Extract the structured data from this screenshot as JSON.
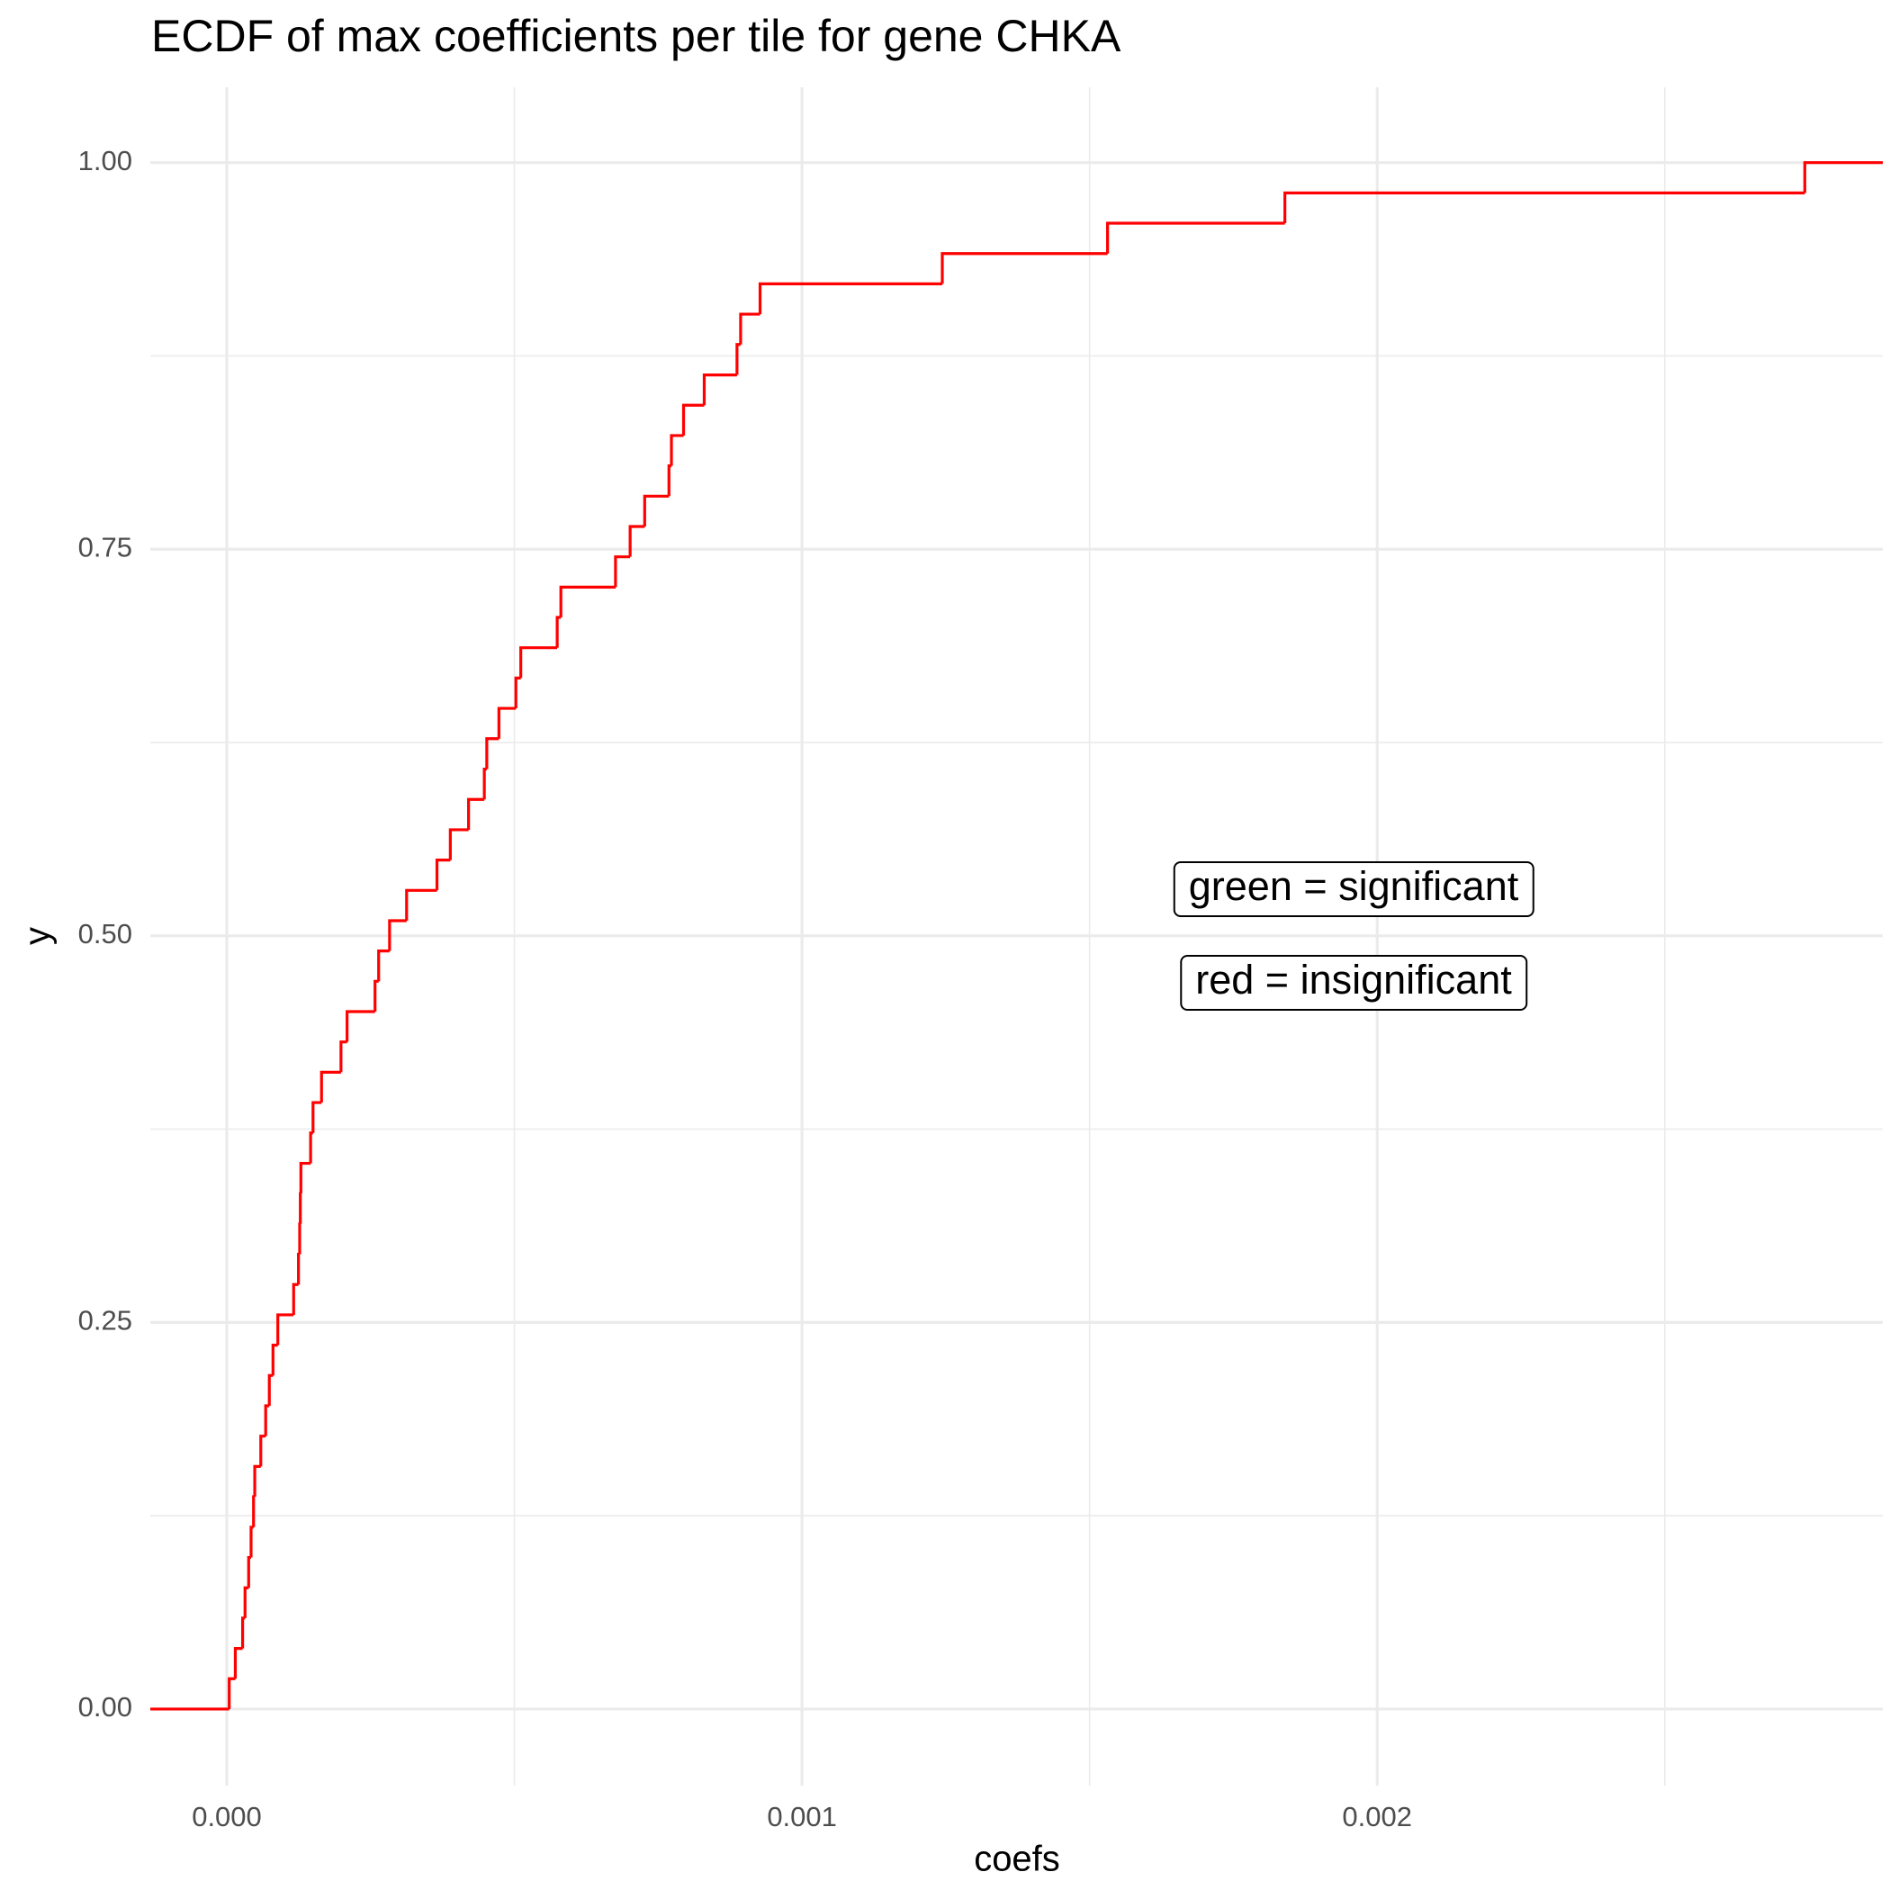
{
  "chart_data": {
    "type": "ecdf",
    "title": "ECDF of max coefficients per tile for gene CHKA",
    "x_label": "coefs",
    "y_label": "y",
    "color": "#ff0000",
    "x": [
      4.2e-06,
      1.48e-05,
      2.75e-05,
      3.17e-05,
      3.8e-05,
      4.22e-05,
      4.65e-05,
      4.86e-05,
      5.91e-05,
      6.76e-05,
      7.39e-05,
      8.03e-05,
      8.87e-05,
      0.0001162,
      0.0001246,
      0.0001267,
      0.0001278,
      0.0001288,
      0.0001457,
      0.0001499,
      0.0001647,
      0.0001985,
      0.0002091,
      0.0002577,
      0.000264,
      0.000283,
      0.0003126,
      0.0003654,
      0.0003886,
      0.0004203,
      0.0004477,
      0.000452,
      0.0004731,
      0.0005026,
      0.0005111,
      0.0005744,
      0.0005808,
      0.0006758,
      0.0007012,
      0.0007265,
      0.0007687,
      0.000773,
      0.0007941,
      0.00083,
      0.000887,
      0.0008933,
      0.0009271,
      0.0012439,
      0.0015312,
      0.0018395,
      0.0027434
    ],
    "values": [
      0.0196,
      0.0392,
      0.0588,
      0.0784,
      0.098,
      0.1176,
      0.1373,
      0.1569,
      0.1765,
      0.1961,
      0.2157,
      0.2353,
      0.2549,
      0.2745,
      0.2941,
      0.3137,
      0.3333,
      0.3529,
      0.3725,
      0.3922,
      0.4118,
      0.4314,
      0.451,
      0.4706,
      0.4902,
      0.5098,
      0.5294,
      0.549,
      0.5686,
      0.5882,
      0.6078,
      0.6275,
      0.6471,
      0.6667,
      0.6863,
      0.7059,
      0.7255,
      0.7451,
      0.7647,
      0.7843,
      0.8039,
      0.8235,
      0.8431,
      0.8627,
      0.8824,
      0.902,
      0.9216,
      0.9412,
      0.9608,
      0.9804,
      1
    ],
    "xlim": [
      -0.000133,
      0.002879
    ],
    "ylim": [
      -0.0495,
      1.0487
    ],
    "xticks": [
      {
        "value": 0,
        "label": "0.000"
      },
      0.001,
      0.002
    ],
    "yticks": [
      {
        "value": 0,
        "label": "0.00"
      },
      0.25,
      {
        "value": 0.5,
        "label": "0.50"
      },
      0.75,
      {
        "value": 1,
        "label": "1.00"
      }
    ],
    "x_minor_ticks": [
      0.0005,
      0.0015,
      0.0025
    ],
    "y_minor_ticks": [
      0.125,
      0.375,
      0.625,
      0.875
    ],
    "grid": true,
    "annotations": [
      "green = significant",
      "red = insignificant"
    ]
  }
}
